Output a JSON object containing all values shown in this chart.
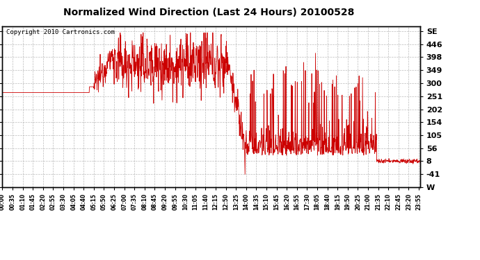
{
  "title": "Normalized Wind Direction (Last 24 Hours) 20100528",
  "copyright": "Copyright 2010 Cartronics.com",
  "line_color": "#cc0000",
  "background_color": "#ffffff",
  "plot_background": "#ffffff",
  "grid_color": "#aaaaaa",
  "ytick_labels": [
    "W",
    "-41",
    "8",
    "56",
    "105",
    "154",
    "202",
    "251",
    "300",
    "349",
    "398",
    "446",
    "SE"
  ],
  "ytick_values": [
    -90,
    -41,
    8,
    56,
    105,
    154,
    202,
    251,
    300,
    349,
    398,
    446,
    495
  ],
  "ylim": [
    -90,
    515
  ],
  "title_fontsize": 10,
  "xtick_interval_minutes": 35,
  "total_minutes": 1440,
  "n_points": 1440
}
